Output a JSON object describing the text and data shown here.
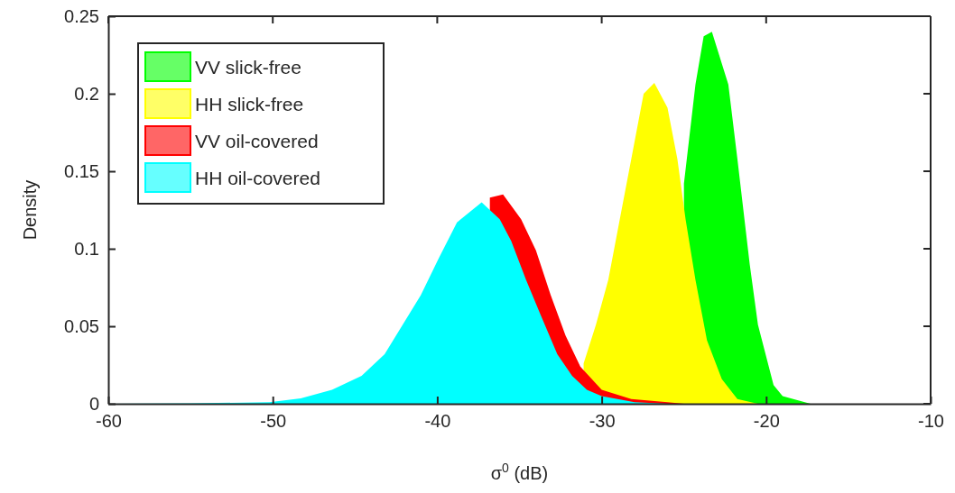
{
  "chart_data": {
    "type": "area",
    "xlabel": "σ$^{0}$ (dB)",
    "ylabel": "Density",
    "xlim": [
      -60,
      -10
    ],
    "xticks": [
      -60,
      -50,
      -40,
      -30,
      -20,
      -10
    ],
    "ylim": [
      0,
      0.25
    ],
    "yticks": [
      0,
      0.05,
      0.1,
      0.15,
      0.2,
      0.25
    ],
    "legend": "top left",
    "grid": false,
    "series": [
      {
        "name": "VV slick-free",
        "color": "#00ff00",
        "x": [
          -25,
          -24.3,
          -23.8,
          -23.3,
          -22.3,
          -21.75,
          -21,
          -20.5,
          -19.55,
          -19,
          -17.3
        ],
        "values": [
          0.142,
          0.206,
          0.237,
          0.24,
          0.206,
          0.158,
          0.09,
          0.051,
          0.012,
          0.005,
          0
        ]
      },
      {
        "name": "HH slick-free",
        "color": "#ffff00",
        "x": [
          -31.1,
          -30.35,
          -29.6,
          -28.9,
          -28.2,
          -27.45,
          -26.8,
          -26,
          -25.4,
          -24.9,
          -24.3,
          -23.6,
          -22.7,
          -21.75,
          -20.5
        ],
        "values": [
          0.026,
          0.051,
          0.08,
          0.119,
          0.158,
          0.2,
          0.207,
          0.191,
          0.158,
          0.119,
          0.08,
          0.041,
          0.016,
          0.003,
          0
        ]
      },
      {
        "name": "VV oil-covered",
        "color": "#ff0000",
        "x": [
          -36.8,
          -36,
          -34.9,
          -34,
          -33.1,
          -32.2,
          -31.3,
          -30,
          -28.2,
          -26,
          -25
        ],
        "values": [
          0.133,
          0.135,
          0.119,
          0.099,
          0.07,
          0.044,
          0.024,
          0.009,
          0.003,
          0.001,
          0
        ]
      },
      {
        "name": "HH oil-covered",
        "color": "#00ffff",
        "x": [
          -60,
          -55,
          -50.2,
          -48.3,
          -46.4,
          -44.6,
          -43.2,
          -42.1,
          -41,
          -39.9,
          -38.8,
          -37.3,
          -36.2,
          -35.5,
          -34.6,
          -33.7,
          -32.7,
          -31.8,
          -30.9,
          -30,
          -28,
          -26
        ],
        "values": [
          0,
          0.0003,
          0.001,
          0.0035,
          0.009,
          0.018,
          0.032,
          0.051,
          0.07,
          0.094,
          0.117,
          0.13,
          0.119,
          0.105,
          0.08,
          0.057,
          0.032,
          0.018,
          0.009,
          0.005,
          0.001,
          0
        ]
      }
    ]
  }
}
